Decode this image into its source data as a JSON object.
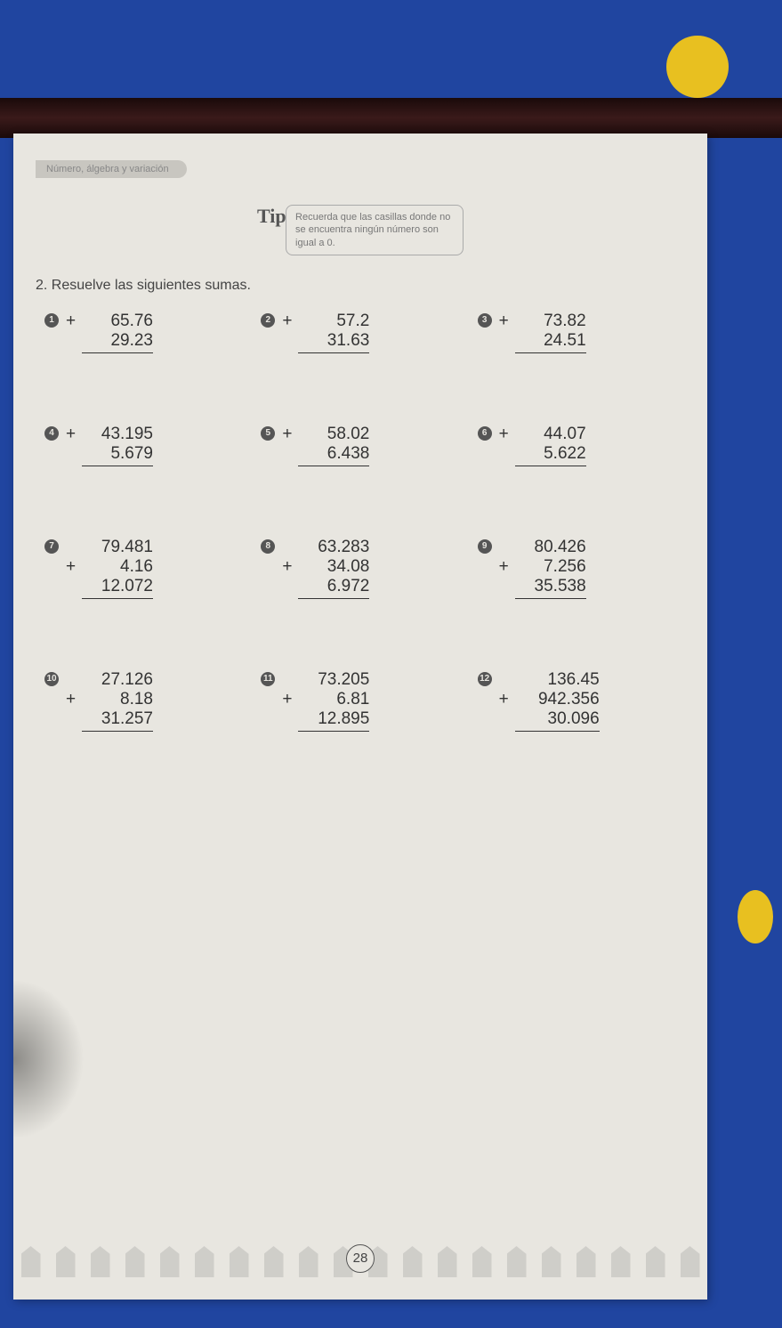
{
  "section_tab": "Número, álgebra y variación",
  "tip": {
    "label": "Tip",
    "text": "Recuerda que las casillas donde no se encuentra ningún número son igual a 0."
  },
  "instruction_number": "2.",
  "instruction_text": "Resuelve las siguientes sumas.",
  "problems": [
    {
      "n": "1",
      "addends": [
        "65.76",
        "29.23"
      ],
      "wide": false
    },
    {
      "n": "2",
      "addends": [
        "57.2",
        "31.63"
      ],
      "wide": false
    },
    {
      "n": "3",
      "addends": [
        "73.82",
        "24.51"
      ],
      "wide": false
    },
    {
      "n": "4",
      "addends": [
        "43.195",
        "5.679"
      ],
      "wide": false
    },
    {
      "n": "5",
      "addends": [
        "58.02",
        "6.438"
      ],
      "wide": false
    },
    {
      "n": "6",
      "addends": [
        "44.07",
        "5.622"
      ],
      "wide": false
    },
    {
      "n": "7",
      "addends": [
        "79.481",
        "4.16",
        "12.072"
      ],
      "wide": false
    },
    {
      "n": "8",
      "addends": [
        "63.283",
        "34.08",
        "6.972"
      ],
      "wide": false
    },
    {
      "n": "9",
      "addends": [
        "80.426",
        "7.256",
        "35.538"
      ],
      "wide": false
    },
    {
      "n": "10",
      "addends": [
        "27.126",
        "8.18",
        "31.257"
      ],
      "wide": false
    },
    {
      "n": "11",
      "addends": [
        "73.205",
        "6.81",
        "12.895"
      ],
      "wide": false
    },
    {
      "n": "12",
      "addends": [
        "136.45",
        "942.356",
        "30.096"
      ],
      "wide": true
    }
  ],
  "page_number": "28",
  "colors": {
    "page_bg": "#e8e6e0",
    "text": "#333333",
    "fabric": "#2045a0",
    "dot": "#e8c020"
  }
}
